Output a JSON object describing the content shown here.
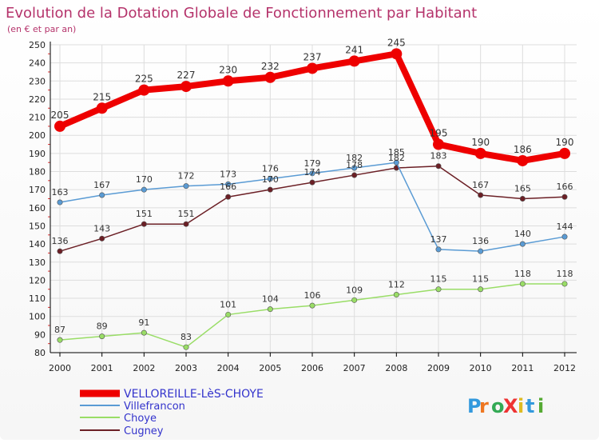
{
  "chart_data": {
    "type": "line",
    "title": "Evolution de la Dotation Globale de Fonctionnement par Habitant",
    "subtitle": "(en € et par an)",
    "categories": [
      "2000",
      "2001",
      "2002",
      "2003",
      "2004",
      "2005",
      "2006",
      "2007",
      "2008",
      "2009",
      "2010",
      "2011",
      "2012"
    ],
    "ylim": [
      80,
      250
    ],
    "yticks": [
      80,
      90,
      100,
      110,
      120,
      130,
      140,
      150,
      160,
      170,
      180,
      190,
      200,
      210,
      220,
      230,
      240,
      250
    ],
    "grid": true,
    "legend_position": "bottom-left",
    "series": [
      {
        "name": "VELLOREILLE-LèS-CHOYE",
        "color": "#ee0000",
        "values": [
          205,
          215,
          225,
          227,
          230,
          232,
          237,
          241,
          245,
          195,
          190,
          186,
          190
        ]
      },
      {
        "name": "Villefrancon",
        "color": "#5a9bd4",
        "values": [
          163,
          167,
          170,
          172,
          173,
          176,
          179,
          182,
          185,
          137,
          136,
          140,
          144
        ]
      },
      {
        "name": "Choye",
        "color": "#99dd66",
        "values": [
          87,
          89,
          91,
          83,
          101,
          104,
          106,
          109,
          112,
          115,
          115,
          118,
          118
        ]
      },
      {
        "name": "Cugney",
        "color": "#6b1f25",
        "values": [
          136,
          143,
          151,
          151,
          166,
          170,
          174,
          178,
          182,
          183,
          167,
          165,
          166
        ]
      }
    ],
    "logo": "ProXiti"
  },
  "colors": {
    "title": "#b5336b",
    "subtitle": "#b5336b",
    "legend_text": "#3333cc",
    "axis": "#000000",
    "grid": "#dddddd",
    "tick_label": "#222222",
    "data_label": "#333333"
  }
}
